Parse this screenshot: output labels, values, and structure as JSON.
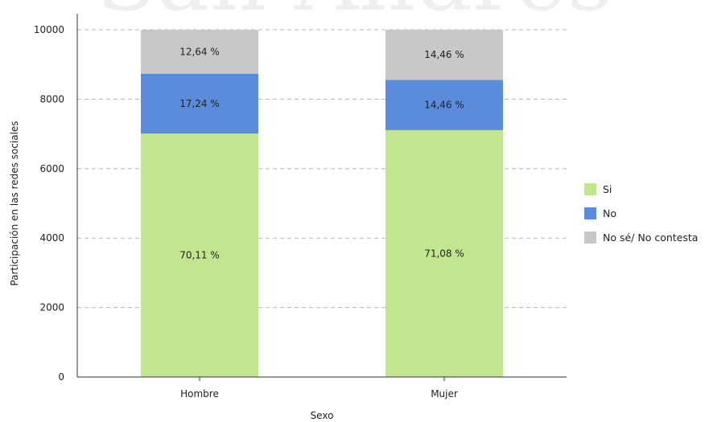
{
  "watermark": "San Andrés",
  "chart_data": {
    "type": "bar",
    "stacked": true,
    "categories": [
      "Hombre",
      "Mujer"
    ],
    "series": [
      {
        "name": "Si",
        "color": "#c2e58f",
        "values": [
          7011,
          7108
        ],
        "labels": [
          "70,11 %",
          "71,08 %"
        ]
      },
      {
        "name": "No",
        "color": "#5b8cdc",
        "values": [
          1724,
          1446
        ],
        "labels": [
          "17,24 %",
          "14,46 %"
        ]
      },
      {
        "name": "No sé/ No contesta",
        "color": "#c8c8c8",
        "values": [
          1264,
          1446
        ],
        "labels": [
          "12,64 %",
          "14,46 %"
        ]
      }
    ],
    "xlabel": "Sexo",
    "ylabel": "Participación en las redes sociales",
    "ylim": [
      0,
      10000
    ],
    "yticks": [
      0,
      2000,
      4000,
      6000,
      8000,
      10000
    ],
    "grid": true,
    "legend_position": "right"
  }
}
